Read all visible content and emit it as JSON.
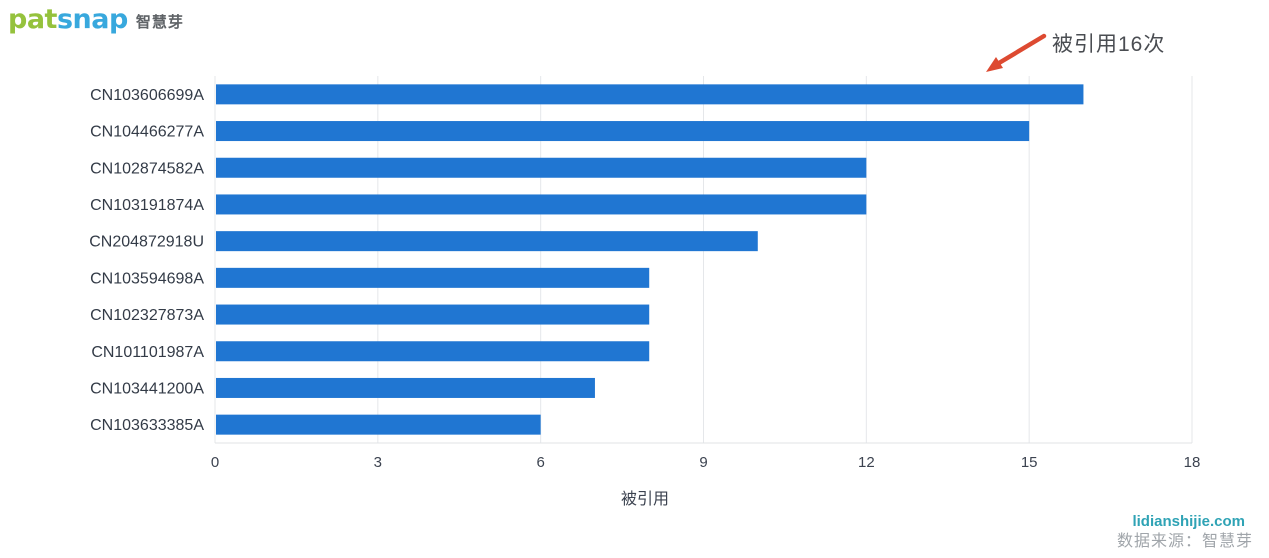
{
  "logo": {
    "part_green": "pat",
    "part_blue": "snap",
    "suffix_cn": "智慧芽",
    "green_color": "#95c23d",
    "blue_color": "#38a8dd"
  },
  "annotation": {
    "text": "被引用16次",
    "arrow_color": "#dd4a31"
  },
  "chart_data": {
    "type": "bar",
    "orientation": "horizontal",
    "categories": [
      "CN103606699A",
      "CN104466277A",
      "CN102874582A",
      "CN103191874A",
      "CN204872918U",
      "CN103594698A",
      "CN102327873A",
      "CN101101987A",
      "CN103441200A",
      "CN103633385A"
    ],
    "values": [
      16,
      15,
      12,
      12,
      10,
      8,
      8,
      8,
      7,
      6
    ],
    "xlabel": "被引用",
    "ylabel": "",
    "xticks": [
      0,
      3,
      6,
      9,
      12,
      15,
      18
    ],
    "xlim": [
      0,
      18
    ],
    "bar_color": "#2076d2",
    "grid": true,
    "legend": null,
    "title": ""
  },
  "watermark": {
    "site": "lidianshijie.com",
    "source": "数据来源：智慧芽",
    "site_color": "#2fa3b5"
  }
}
